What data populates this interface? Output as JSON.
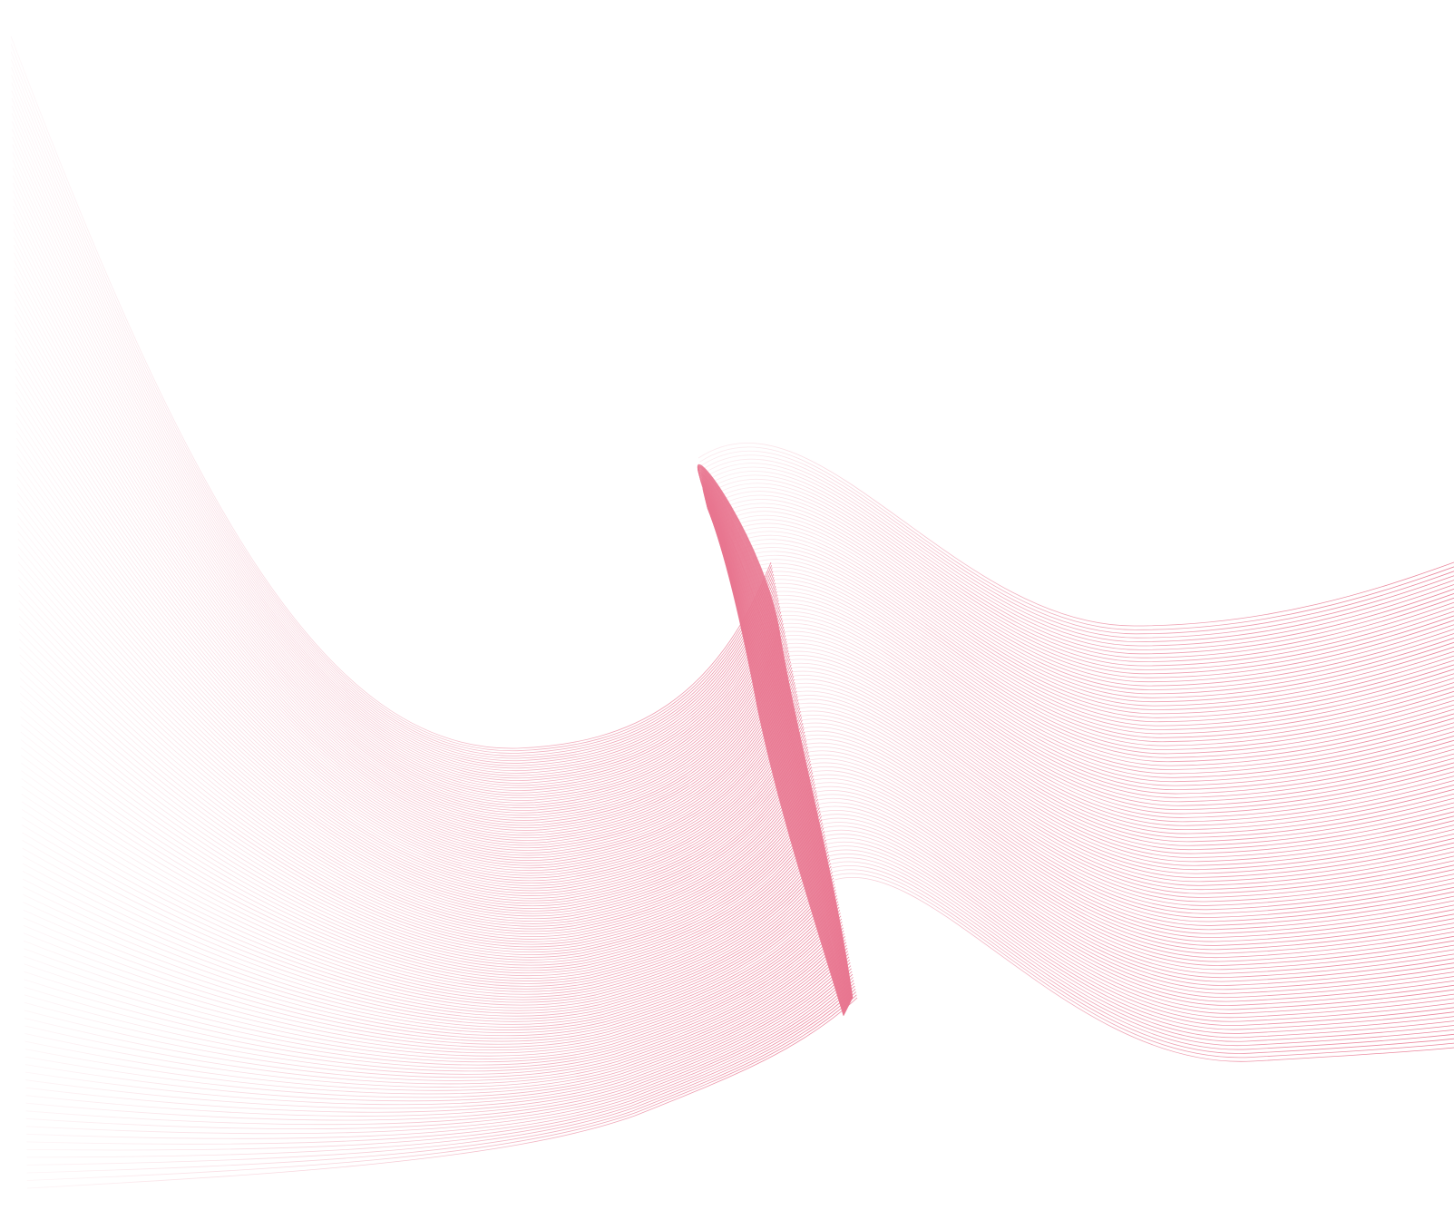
{
  "canvas": {
    "background_color": "#ffffff"
  },
  "artwork": {
    "subject": "wave-ribbon",
    "line_color": "#e8758f",
    "left_band": {
      "line_count": 150
    },
    "fold_band": {
      "line_count": 90
    },
    "right_band": {
      "line_count": 110
    }
  }
}
